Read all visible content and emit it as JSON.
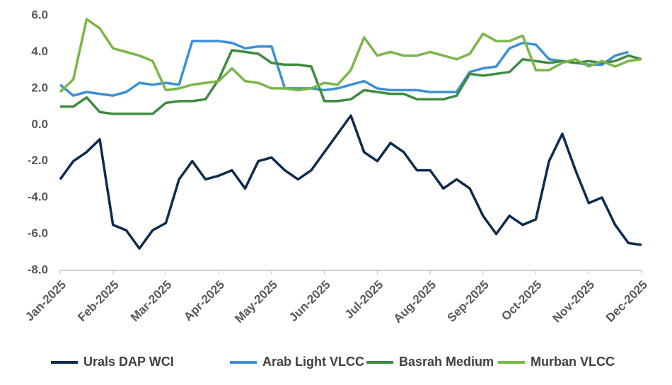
{
  "chart_data": {
    "type": "line",
    "categories": [
      "Jan-2025",
      null,
      null,
      null,
      "Feb-2025",
      null,
      null,
      null,
      "Mar-2025",
      null,
      null,
      null,
      "Apr-2025",
      null,
      null,
      null,
      "May-2025",
      null,
      null,
      null,
      "Jun-2025",
      null,
      null,
      null,
      "Jul-2025",
      null,
      null,
      null,
      "Aug-2025",
      null,
      null,
      null,
      "Sep-2025",
      null,
      null,
      null,
      "Oct-2025",
      null,
      null,
      null,
      "Nov-2025",
      null,
      null,
      null,
      "Dec-2025"
    ],
    "series": [
      {
        "name": "Urals DAP WCI",
        "color": "#0d2b4e",
        "values": [
          -3.0,
          -2.0,
          -1.5,
          -0.8,
          -5.5,
          -5.8,
          -6.8,
          -5.8,
          -5.4,
          -3.0,
          -2.0,
          -3.0,
          -2.8,
          -2.5,
          -3.5,
          -2.0,
          -1.8,
          -2.5,
          -3.0,
          -2.5,
          -1.5,
          -0.5,
          0.5,
          -1.5,
          -2.0,
          -1.0,
          -1.5,
          -2.5,
          -2.5,
          -3.5,
          -3.0,
          -3.5,
          -5.0,
          -6.0,
          -5.0,
          -5.5,
          -5.2,
          -2.0,
          -0.5,
          -2.5,
          -4.3,
          -4.0,
          -5.5,
          -6.5,
          -6.6
        ]
      },
      {
        "name": "Arab Light VLCC",
        "color": "#3d8fd6",
        "values": [
          2.2,
          1.6,
          1.8,
          1.7,
          1.6,
          1.8,
          2.3,
          2.2,
          2.3,
          2.2,
          4.6,
          4.6,
          4.6,
          4.5,
          4.2,
          4.3,
          4.3,
          2.0,
          2.0,
          2.0,
          1.9,
          2.0,
          2.2,
          2.4,
          2.0,
          1.9,
          1.9,
          1.9,
          1.8,
          1.8,
          1.8,
          2.9,
          3.1,
          3.2,
          4.2,
          4.5,
          4.4,
          3.6,
          3.5,
          3.4,
          3.3,
          3.3,
          3.8,
          4.0,
          null
        ]
      },
      {
        "name": "Basrah Medium",
        "color": "#3f8a3f",
        "values": [
          1.0,
          1.0,
          1.5,
          0.7,
          0.6,
          0.6,
          0.6,
          0.6,
          1.2,
          1.3,
          1.3,
          1.4,
          2.5,
          4.1,
          4.0,
          3.9,
          3.4,
          3.3,
          3.3,
          3.2,
          1.3,
          1.3,
          1.4,
          1.9,
          1.8,
          1.7,
          1.7,
          1.4,
          1.4,
          1.4,
          1.6,
          2.8,
          2.7,
          2.8,
          2.9,
          3.6,
          3.5,
          3.4,
          3.5,
          3.4,
          3.5,
          3.4,
          3.5,
          3.8,
          3.6
        ]
      },
      {
        "name": "Murban VLCC",
        "color": "#7ab648",
        "values": [
          1.8,
          2.5,
          5.8,
          5.3,
          4.2,
          4.0,
          3.8,
          3.5,
          1.9,
          2.0,
          2.2,
          2.3,
          2.4,
          3.1,
          2.4,
          2.3,
          2.0,
          2.0,
          1.9,
          2.0,
          2.3,
          2.2,
          3.0,
          4.8,
          3.8,
          4.0,
          3.8,
          3.8,
          4.0,
          3.8,
          3.6,
          3.9,
          5.0,
          4.6,
          4.6,
          4.9,
          3.0,
          3.0,
          3.4,
          3.6,
          3.2,
          3.5,
          3.2,
          3.5,
          3.6
        ]
      }
    ],
    "ylim": [
      -8,
      6
    ],
    "yticks": [
      {
        "value": -8,
        "label": "-8.0"
      },
      {
        "value": -6,
        "label": "-6.0"
      },
      {
        "value": -4,
        "label": "-4.0"
      },
      {
        "value": -2,
        "label": "-2.0"
      },
      {
        "value": 0,
        "label": "0.0"
      },
      {
        "value": 2,
        "label": "2.0"
      },
      {
        "value": 4,
        "label": "4.0"
      },
      {
        "value": 6,
        "label": "6.0"
      }
    ],
    "grid": false,
    "legend": "bottom"
  }
}
